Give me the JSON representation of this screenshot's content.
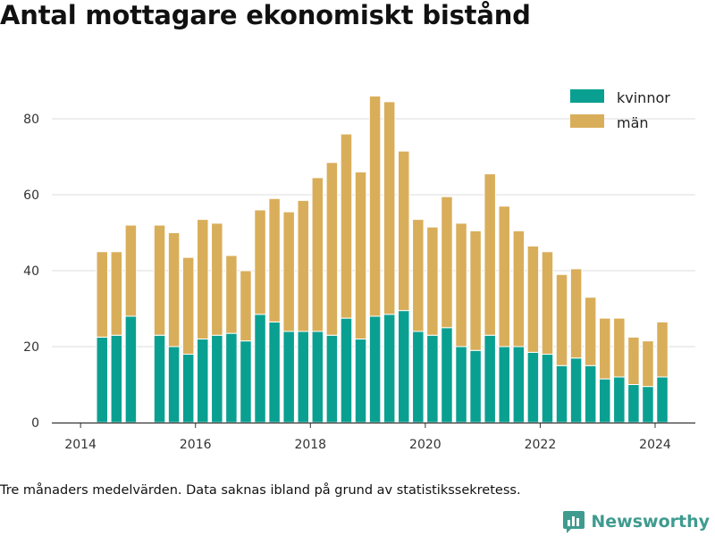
{
  "title": "Antal mottagare ekonomiskt bistånd",
  "caption": "Tre månaders medelvärden. Data saknas ibland på grund av statistikssekretess.",
  "brand": {
    "name": "Newsworthy",
    "icon": "newsworthy-logo-icon"
  },
  "colors": {
    "kvinnor": "#0aa091",
    "man": "#d9ae5a",
    "grid": "#dddddd",
    "axis": "#333333"
  },
  "chart_data": {
    "type": "bar",
    "stacked": true,
    "x_axis": {
      "ticks": [
        2014,
        2016,
        2018,
        2020,
        2022,
        2024
      ],
      "range": [
        2013.5,
        2024.7
      ]
    },
    "y_axis": {
      "ticks": [
        0,
        20,
        40,
        60,
        80
      ],
      "range": [
        0,
        92
      ]
    },
    "grid": true,
    "legend_position": "top-right",
    "x": [
      2014.375,
      2014.625,
      2014.875,
      2015.375,
      2015.625,
      2015.875,
      2016.125,
      2016.375,
      2016.625,
      2016.875,
      2017.125,
      2017.375,
      2017.625,
      2017.875,
      2018.125,
      2018.375,
      2018.625,
      2018.875,
      2019.125,
      2019.375,
      2019.625,
      2019.875,
      2020.125,
      2020.375,
      2020.625,
      2020.875,
      2021.125,
      2021.375,
      2021.625,
      2021.875,
      2022.125,
      2022.375,
      2022.625,
      2022.875,
      2023.125,
      2023.375,
      2023.625,
      2023.875,
      2024.125
    ],
    "series": [
      {
        "name": "kvinnor",
        "values": [
          22.5,
          23,
          28,
          23,
          20,
          18,
          22,
          23,
          23.5,
          21.5,
          28.5,
          26.5,
          24,
          24,
          24,
          23,
          27.5,
          22,
          28,
          28.5,
          29.5,
          24,
          23,
          25,
          20,
          19,
          23,
          20,
          20,
          18.5,
          18,
          15,
          17,
          15,
          11.5,
          12,
          10,
          9.5,
          12
        ]
      },
      {
        "name": "män",
        "values": [
          22.5,
          22,
          24,
          29,
          30,
          25.5,
          31.5,
          29.5,
          20.5,
          18.5,
          27.5,
          32.5,
          31.5,
          34.5,
          40.5,
          45.5,
          48.5,
          44,
          58,
          56,
          42,
          29.5,
          28.5,
          34.5,
          32.5,
          31.5,
          42.5,
          37,
          30.5,
          28,
          27,
          24,
          23.5,
          18,
          16,
          15.5,
          12.5,
          12,
          14.5
        ]
      }
    ]
  }
}
